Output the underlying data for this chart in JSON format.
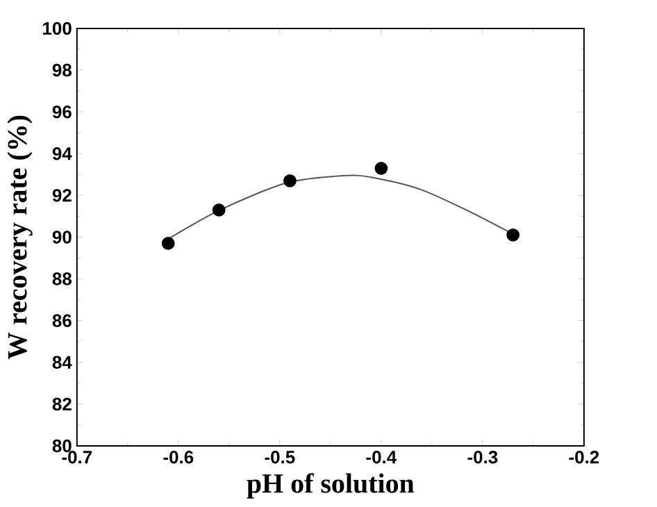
{
  "chart_data": {
    "type": "scatter",
    "xlabel": "pH of solution",
    "ylabel": "W recovery rate (%)",
    "xlim": [
      -0.7,
      -0.2
    ],
    "xticks": [
      -0.7,
      -0.6,
      -0.5,
      -0.4,
      -0.3,
      -0.2
    ],
    "ylim": [
      80,
      100
    ],
    "yticks": [
      80,
      82,
      84,
      86,
      88,
      90,
      92,
      94,
      96,
      98,
      100
    ],
    "grid": false,
    "series": [
      {
        "type": "scatter",
        "marker": "circle",
        "color": "#000000",
        "x": [
          -0.61,
          -0.56,
          -0.49,
          -0.4,
          -0.27
        ],
        "values": [
          89.7,
          91.3,
          92.7,
          93.3,
          90.1
        ]
      },
      {
        "type": "line",
        "color": "#555555",
        "marker": "none",
        "x": [
          -0.614,
          -0.559,
          -0.493,
          -0.435,
          -0.408,
          -0.362,
          -0.316,
          -0.272
        ],
        "values": [
          89.8,
          91.3,
          92.6,
          92.95,
          92.85,
          92.3,
          91.3,
          90.2
        ]
      }
    ]
  }
}
